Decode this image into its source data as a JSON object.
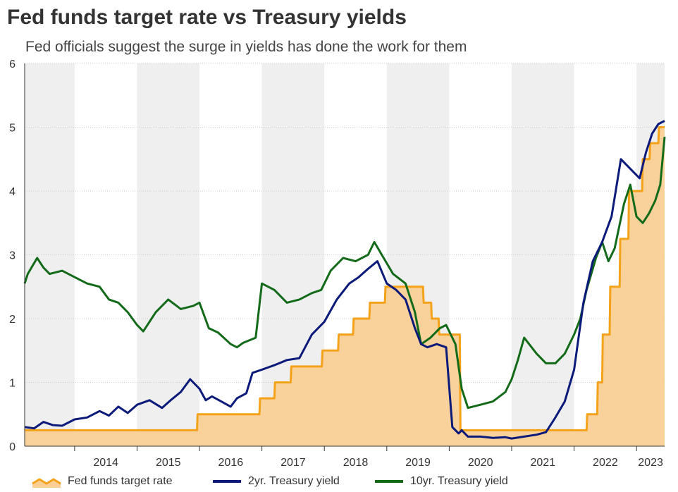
{
  "chart_data": {
    "type": "line",
    "title": "Fed funds target rate vs Treasury yields",
    "subtitle": "Fed officials suggest the surge in yields has done the work for them",
    "xlabel": "",
    "ylabel": "",
    "xlim": [
      2013.2,
      2023.45
    ],
    "ylim": [
      0,
      6
    ],
    "y_ticks": [
      0,
      1,
      2,
      3,
      4,
      5,
      6
    ],
    "x_tick_labels": [
      "2014",
      "2015",
      "2016",
      "2017",
      "2018",
      "2019",
      "2020",
      "2021",
      "2022",
      "2023"
    ],
    "shaded_years": "alternating year bands, grey",
    "legend_position": "bottom",
    "colors": {
      "fed_funds_line": "#f5a21b",
      "fed_funds_fill": "#f9cf95",
      "two_year": "#0c1a7a",
      "ten_year": "#136b1a",
      "band": "#efefef"
    },
    "series": [
      {
        "name": "Fed funds target rate",
        "style": "step-area",
        "x": [
          2013.2,
          2015.96,
          2015.97,
          2016.96,
          2016.97,
          2017.2,
          2017.21,
          2017.46,
          2017.47,
          2017.96,
          2017.97,
          2018.22,
          2018.23,
          2018.46,
          2018.47,
          2018.72,
          2018.73,
          2018.97,
          2018.98,
          2019.58,
          2019.59,
          2019.71,
          2019.72,
          2019.83,
          2019.84,
          2020.17,
          2020.18,
          2022.2,
          2022.21,
          2022.37,
          2022.38,
          2022.45,
          2022.46,
          2022.57,
          2022.58,
          2022.73,
          2022.74,
          2022.87,
          2022.88,
          2023.09,
          2023.1,
          2023.21,
          2023.22,
          2023.35,
          2023.36,
          2023.45
        ],
        "values": [
          0.25,
          0.25,
          0.5,
          0.5,
          0.75,
          0.75,
          1.0,
          1.0,
          1.25,
          1.25,
          1.5,
          1.5,
          1.75,
          1.75,
          2.0,
          2.0,
          2.25,
          2.25,
          2.5,
          2.5,
          2.25,
          2.25,
          2.0,
          2.0,
          1.75,
          1.75,
          0.25,
          0.25,
          0.5,
          0.5,
          1.0,
          1.0,
          1.75,
          1.75,
          2.5,
          2.5,
          3.25,
          3.25,
          4.0,
          4.0,
          4.5,
          4.5,
          4.75,
          4.75,
          5.0,
          5.0
        ]
      },
      {
        "name": "2yr. Treasury yield",
        "x": [
          2013.2,
          2013.35,
          2013.5,
          2013.65,
          2013.8,
          2014.0,
          2014.2,
          2014.4,
          2014.55,
          2014.7,
          2014.85,
          2015.0,
          2015.2,
          2015.4,
          2015.55,
          2015.7,
          2015.85,
          2016.0,
          2016.1,
          2016.2,
          2016.35,
          2016.5,
          2016.6,
          2016.75,
          2016.85,
          2017.0,
          2017.2,
          2017.4,
          2017.6,
          2017.8,
          2018.0,
          2018.2,
          2018.4,
          2018.55,
          2018.7,
          2018.85,
          2019.0,
          2019.15,
          2019.3,
          2019.45,
          2019.55,
          2019.65,
          2019.8,
          2019.95,
          2020.05,
          2020.15,
          2020.2,
          2020.3,
          2020.5,
          2020.7,
          2020.9,
          2021.0,
          2021.2,
          2021.4,
          2021.55,
          2021.7,
          2021.85,
          2022.0,
          2022.15,
          2022.3,
          2022.45,
          2022.6,
          2022.75,
          2022.85,
          2022.95,
          2023.05,
          2023.15,
          2023.25,
          2023.35,
          2023.45
        ],
        "values": [
          0.3,
          0.28,
          0.38,
          0.33,
          0.32,
          0.42,
          0.45,
          0.55,
          0.48,
          0.62,
          0.52,
          0.65,
          0.72,
          0.6,
          0.73,
          0.85,
          1.05,
          0.9,
          0.72,
          0.78,
          0.7,
          0.62,
          0.75,
          0.83,
          1.15,
          1.2,
          1.27,
          1.35,
          1.38,
          1.75,
          1.95,
          2.3,
          2.55,
          2.65,
          2.78,
          2.9,
          2.55,
          2.45,
          2.3,
          1.85,
          1.6,
          1.55,
          1.6,
          1.55,
          0.3,
          0.2,
          0.25,
          0.15,
          0.15,
          0.13,
          0.14,
          0.12,
          0.15,
          0.18,
          0.22,
          0.45,
          0.7,
          1.2,
          2.25,
          2.9,
          3.2,
          3.6,
          4.5,
          4.4,
          4.3,
          4.2,
          4.6,
          4.9,
          5.05,
          5.1
        ]
      },
      {
        "name": "10yr. Treasury yield",
        "x": [
          2013.2,
          2013.25,
          2013.4,
          2013.5,
          2013.6,
          2013.8,
          2014.0,
          2014.2,
          2014.4,
          2014.55,
          2014.7,
          2014.85,
          2015.0,
          2015.1,
          2015.3,
          2015.5,
          2015.7,
          2015.9,
          2016.0,
          2016.15,
          2016.3,
          2016.5,
          2016.6,
          2016.7,
          2016.9,
          2017.0,
          2017.2,
          2017.4,
          2017.6,
          2017.8,
          2017.95,
          2018.1,
          2018.3,
          2018.5,
          2018.7,
          2018.8,
          2018.95,
          2019.1,
          2019.3,
          2019.45,
          2019.55,
          2019.7,
          2019.85,
          2019.95,
          2020.1,
          2020.2,
          2020.3,
          2020.5,
          2020.7,
          2020.9,
          2021.0,
          2021.1,
          2021.2,
          2021.4,
          2021.55,
          2021.7,
          2021.85,
          2022.0,
          2022.1,
          2022.2,
          2022.35,
          2022.45,
          2022.55,
          2022.65,
          2022.8,
          2022.9,
          2023.0,
          2023.1,
          2023.2,
          2023.3,
          2023.38,
          2023.45
        ],
        "values": [
          2.55,
          2.7,
          2.95,
          2.8,
          2.7,
          2.75,
          2.65,
          2.55,
          2.5,
          2.3,
          2.25,
          2.1,
          1.9,
          1.8,
          2.1,
          2.3,
          2.15,
          2.2,
          2.25,
          1.85,
          1.78,
          1.6,
          1.55,
          1.62,
          1.7,
          2.55,
          2.45,
          2.25,
          2.3,
          2.4,
          2.45,
          2.75,
          2.95,
          2.9,
          3.0,
          3.2,
          2.95,
          2.7,
          2.55,
          2.1,
          1.6,
          1.7,
          1.85,
          1.9,
          1.6,
          0.9,
          0.6,
          0.65,
          0.7,
          0.85,
          1.05,
          1.35,
          1.7,
          1.45,
          1.3,
          1.3,
          1.45,
          1.75,
          2.0,
          2.45,
          2.95,
          3.2,
          2.9,
          3.1,
          3.8,
          4.1,
          3.6,
          3.5,
          3.65,
          3.85,
          4.1,
          4.85
        ]
      }
    ]
  }
}
